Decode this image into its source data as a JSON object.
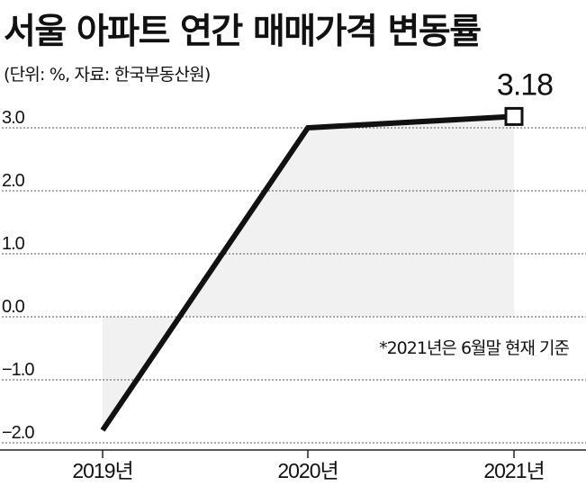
{
  "title": "서울 아파트 연간 매매가격 변동률",
  "subtitle": "(단위: %, 자료: 한국부동산원)",
  "note": "*2021년은 6월말 현재 기준",
  "chart_data": {
    "type": "line",
    "title": "서울 아파트 연간 매매가격 변동률",
    "subtitle": "(단위: %, 자료: 한국부동산원)",
    "categories": [
      "2019년",
      "2020년",
      "2021년"
    ],
    "series": [
      {
        "values": [
          -1.8,
          3.0,
          3.18
        ]
      }
    ],
    "data_labels": [
      {
        "index": 2,
        "text": "3.18"
      }
    ],
    "yticks": [
      "3.0",
      "2.0",
      "1.0",
      "0.0",
      "−1.0",
      "−2.0"
    ],
    "ytick_values": [
      3,
      2,
      1,
      0,
      -1,
      -2
    ],
    "ylim": [
      -2,
      3
    ],
    "grid": true,
    "colors": {
      "line": "#111111",
      "fill": "#f1f1f1",
      "grid": "#555555"
    }
  }
}
